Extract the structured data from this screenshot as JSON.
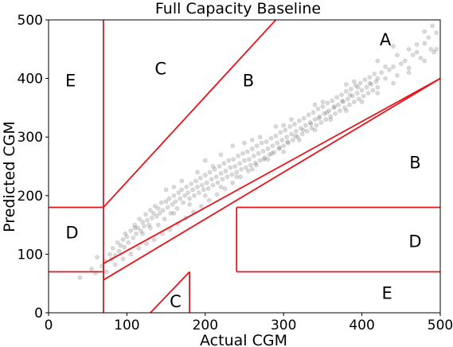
{
  "chart_data": {
    "type": "scatter",
    "title": "Full Capacity Baseline",
    "xlabel": "Actual CGM",
    "ylabel": "Predicted CGM",
    "xlim": [
      0,
      500
    ],
    "ylim": [
      0,
      500
    ],
    "x_ticks": [
      0,
      100,
      200,
      300,
      400,
      500
    ],
    "y_ticks": [
      0,
      100,
      200,
      300,
      400,
      500
    ],
    "grid": false,
    "marker_color": "#000000",
    "marker_opacity": 0.15,
    "grid_line_color": "#e8141a",
    "zone_labels": [
      {
        "text": "A",
        "x": 430,
        "y": 465
      },
      {
        "text": "B",
        "x": 255,
        "y": 395
      },
      {
        "text": "B",
        "x": 468,
        "y": 255
      },
      {
        "text": "C",
        "x": 143,
        "y": 415
      },
      {
        "text": "C",
        "x": 162,
        "y": 18
      },
      {
        "text": "D",
        "x": 30,
        "y": 135
      },
      {
        "text": "D",
        "x": 468,
        "y": 120
      },
      {
        "text": "E",
        "x": 28,
        "y": 395
      },
      {
        "text": "E",
        "x": 432,
        "y": 32
      }
    ],
    "zone_lines": [
      [
        [
          0,
          70
        ],
        [
          70,
          70
        ]
      ],
      [
        [
          70,
          0
        ],
        [
          70,
          500
        ]
      ],
      [
        [
          70,
          84
        ],
        [
          500,
          400
        ]
      ],
      [
        [
          70,
          56
        ],
        [
          500,
          400
        ]
      ],
      [
        [
          70,
          180
        ],
        [
          290,
          500
        ]
      ],
      [
        [
          0,
          180
        ],
        [
          70,
          180
        ]
      ],
      [
        [
          240,
          70
        ],
        [
          240,
          180
        ]
      ],
      [
        [
          240,
          70
        ],
        [
          500,
          70
        ]
      ],
      [
        [
          240,
          180
        ],
        [
          500,
          180
        ]
      ],
      [
        [
          130,
          0
        ],
        [
          180,
          70
        ]
      ],
      [
        [
          180,
          0
        ],
        [
          180,
          70
        ]
      ],
      [
        [
          70,
          56
        ],
        [
          70,
          84
        ]
      ]
    ],
    "series": [
      {
        "points": [
          [
            40,
            60
          ],
          [
            55,
            75
          ],
          [
            60,
            68
          ],
          [
            62,
            95
          ],
          [
            68,
            80
          ],
          [
            72,
            88
          ],
          [
            74,
            70
          ],
          [
            78,
            100
          ],
          [
            80,
            92
          ],
          [
            82,
            110
          ],
          [
            85,
            98
          ],
          [
            88,
            120
          ],
          [
            90,
            105
          ],
          [
            92,
            115
          ],
          [
            95,
            125
          ],
          [
            97,
            112
          ],
          [
            100,
            130
          ],
          [
            102,
            120
          ],
          [
            105,
            140
          ],
          [
            108,
            128
          ],
          [
            110,
            150
          ],
          [
            112,
            135
          ],
          [
            114,
            145
          ],
          [
            116,
            160
          ],
          [
            118,
            140
          ],
          [
            120,
            155
          ],
          [
            122,
            148
          ],
          [
            124,
            168
          ],
          [
            126,
            158
          ],
          [
            128,
            150
          ],
          [
            130,
            175
          ],
          [
            132,
            162
          ],
          [
            134,
            170
          ],
          [
            136,
            182
          ],
          [
            138,
            165
          ],
          [
            140,
            178
          ],
          [
            142,
            170
          ],
          [
            144,
            188
          ],
          [
            146,
            175
          ],
          [
            148,
            160
          ],
          [
            150,
            190
          ],
          [
            152,
            180
          ],
          [
            154,
            195
          ],
          [
            156,
            170
          ],
          [
            158,
            185
          ],
          [
            160,
            200
          ],
          [
            162,
            190
          ],
          [
            164,
            178
          ],
          [
            166,
            205
          ],
          [
            168,
            195
          ],
          [
            170,
            210
          ],
          [
            172,
            188
          ],
          [
            174,
            200
          ],
          [
            176,
            215
          ],
          [
            178,
            205
          ],
          [
            180,
            195
          ],
          [
            182,
            220
          ],
          [
            184,
            210
          ],
          [
            186,
            200
          ],
          [
            188,
            225
          ],
          [
            190,
            215
          ],
          [
            192,
            205
          ],
          [
            194,
            230
          ],
          [
            196,
            218
          ],
          [
            198,
            210
          ],
          [
            200,
            235
          ],
          [
            202,
            222
          ],
          [
            204,
            212
          ],
          [
            206,
            240
          ],
          [
            208,
            228
          ],
          [
            210,
            218
          ],
          [
            212,
            245
          ],
          [
            214,
            232
          ],
          [
            216,
            222
          ],
          [
            218,
            250
          ],
          [
            220,
            238
          ],
          [
            222,
            228
          ],
          [
            224,
            255
          ],
          [
            226,
            242
          ],
          [
            228,
            232
          ],
          [
            230,
            260
          ],
          [
            232,
            248
          ],
          [
            234,
            236
          ],
          [
            236,
            262
          ],
          [
            238,
            250
          ],
          [
            240,
            240
          ],
          [
            242,
            268
          ],
          [
            244,
            255
          ],
          [
            246,
            245
          ],
          [
            248,
            272
          ],
          [
            250,
            260
          ],
          [
            252,
            248
          ],
          [
            254,
            275
          ],
          [
            256,
            262
          ],
          [
            258,
            252
          ],
          [
            260,
            280
          ],
          [
            262,
            268
          ],
          [
            264,
            256
          ],
          [
            266,
            285
          ],
          [
            268,
            272
          ],
          [
            270,
            260
          ],
          [
            272,
            290
          ],
          [
            274,
            276
          ],
          [
            276,
            265
          ],
          [
            278,
            292
          ],
          [
            280,
            280
          ],
          [
            282,
            270
          ],
          [
            284,
            298
          ],
          [
            286,
            285
          ],
          [
            288,
            274
          ],
          [
            290,
            302
          ],
          [
            292,
            290
          ],
          [
            294,
            280
          ],
          [
            296,
            308
          ],
          [
            298,
            295
          ],
          [
            300,
            285
          ],
          [
            302,
            312
          ],
          [
            304,
            300
          ],
          [
            306,
            290
          ],
          [
            308,
            318
          ],
          [
            310,
            305
          ],
          [
            312,
            295
          ],
          [
            314,
            322
          ],
          [
            316,
            310
          ],
          [
            318,
            300
          ],
          [
            320,
            328
          ],
          [
            322,
            315
          ],
          [
            324,
            305
          ],
          [
            326,
            332
          ],
          [
            328,
            320
          ],
          [
            330,
            310
          ],
          [
            332,
            338
          ],
          [
            334,
            325
          ],
          [
            336,
            315
          ],
          [
            338,
            342
          ],
          [
            340,
            330
          ],
          [
            342,
            320
          ],
          [
            344,
            348
          ],
          [
            346,
            335
          ],
          [
            348,
            325
          ],
          [
            350,
            352
          ],
          [
            352,
            340
          ],
          [
            354,
            330
          ],
          [
            356,
            358
          ],
          [
            358,
            345
          ],
          [
            360,
            335
          ],
          [
            362,
            362
          ],
          [
            364,
            350
          ],
          [
            366,
            340
          ],
          [
            368,
            368
          ],
          [
            370,
            355
          ],
          [
            372,
            345
          ],
          [
            374,
            372
          ],
          [
            376,
            360
          ],
          [
            378,
            350
          ],
          [
            380,
            378
          ],
          [
            382,
            365
          ],
          [
            384,
            355
          ],
          [
            386,
            382
          ],
          [
            388,
            370
          ],
          [
            390,
            360
          ],
          [
            392,
            388
          ],
          [
            394,
            375
          ],
          [
            396,
            365
          ],
          [
            398,
            392
          ],
          [
            400,
            380
          ],
          [
            402,
            370
          ],
          [
            404,
            398
          ],
          [
            406,
            385
          ],
          [
            408,
            375
          ],
          [
            410,
            402
          ],
          [
            412,
            390
          ],
          [
            414,
            380
          ],
          [
            416,
            408
          ],
          [
            418,
            395
          ],
          [
            420,
            385
          ],
          [
            425,
            410
          ],
          [
            430,
            400
          ],
          [
            435,
            415
          ],
          [
            440,
            420
          ],
          [
            445,
            405
          ],
          [
            450,
            425
          ],
          [
            455,
            430
          ],
          [
            460,
            418
          ],
          [
            465,
            440
          ],
          [
            470,
            445
          ],
          [
            475,
            435
          ],
          [
            480,
            460
          ],
          [
            485,
            470
          ],
          [
            488,
            450
          ],
          [
            490,
            490
          ],
          [
            492,
            445
          ],
          [
            495,
            478
          ],
          [
            480,
            480
          ],
          [
            470,
            458
          ],
          [
            460,
            450
          ],
          [
            445,
            440
          ],
          [
            430,
            420
          ],
          [
            420,
            400
          ],
          [
            410,
            392
          ],
          [
            395,
            385
          ],
          [
            385,
            372
          ],
          [
            375,
            362
          ],
          [
            365,
            352
          ],
          [
            355,
            342
          ],
          [
            345,
            332
          ],
          [
            335,
            322
          ],
          [
            325,
            312
          ],
          [
            315,
            302
          ],
          [
            305,
            292
          ],
          [
            295,
            282
          ],
          [
            285,
            272
          ],
          [
            275,
            262
          ],
          [
            265,
            252
          ],
          [
            255,
            242
          ],
          [
            245,
            232
          ],
          [
            235,
            222
          ],
          [
            225,
            212
          ],
          [
            215,
            202
          ],
          [
            205,
            192
          ],
          [
            195,
            182
          ],
          [
            185,
            172
          ],
          [
            175,
            162
          ],
          [
            165,
            152
          ],
          [
            155,
            142
          ],
          [
            145,
            135
          ],
          [
            135,
            125
          ],
          [
            125,
            118
          ],
          [
            115,
            110
          ],
          [
            105,
            100
          ],
          [
            95,
            92
          ],
          [
            85,
            82
          ],
          [
            98,
            135
          ],
          [
            110,
            145
          ],
          [
            150,
            210
          ],
          [
            160,
            215
          ],
          [
            200,
            260
          ],
          [
            210,
            250
          ],
          [
            250,
            290
          ],
          [
            260,
            295
          ],
          [
            300,
            320
          ],
          [
            310,
            330
          ],
          [
            340,
            355
          ],
          [
            350,
            360
          ],
          [
            380,
            390
          ],
          [
            390,
            395
          ],
          [
            420,
            430
          ],
          [
            440,
            455
          ],
          [
            300,
            275
          ],
          [
            320,
            295
          ],
          [
            340,
            312
          ],
          [
            360,
            330
          ],
          [
            380,
            345
          ],
          [
            400,
            360
          ],
          [
            420,
            375
          ],
          [
            440,
            392
          ],
          [
            460,
            410
          ],
          [
            480,
            430
          ],
          [
            495,
            450
          ],
          [
            140,
            150
          ],
          [
            160,
            170
          ],
          [
            180,
            185
          ],
          [
            200,
            200
          ],
          [
            220,
            215
          ],
          [
            240,
            232
          ],
          [
            260,
            245
          ],
          [
            280,
            262
          ],
          [
            130,
            145
          ],
          [
            120,
            135
          ],
          [
            190,
            240
          ],
          [
            170,
            225
          ],
          [
            220,
            270
          ],
          [
            235,
            285
          ],
          [
            270,
            300
          ],
          [
            290,
            318
          ]
        ]
      }
    ]
  }
}
